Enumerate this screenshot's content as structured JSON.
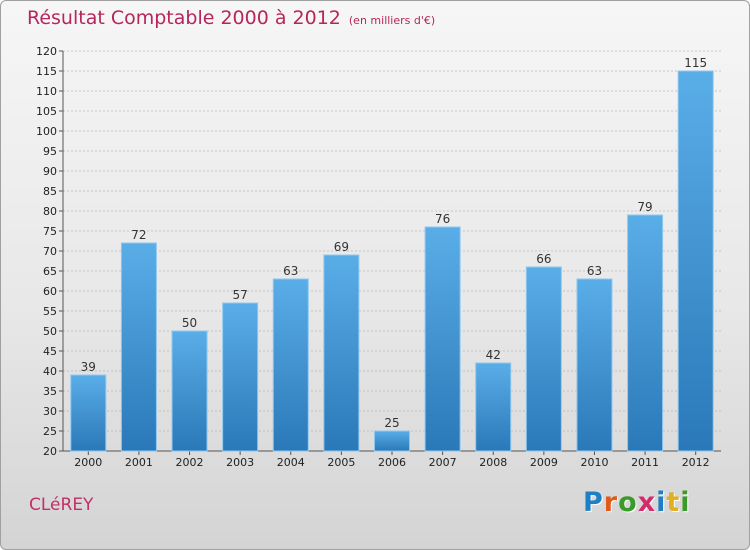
{
  "title": "Résultat Comptable 2000 à 2012",
  "subtitle": "(en milliers d'€)",
  "commune": "CLéREY",
  "logo": {
    "letters": [
      "P",
      "r",
      "o",
      "x",
      "i",
      "t",
      "i"
    ],
    "colors": [
      "#1f7fc4",
      "#e05a1a",
      "#3a9a2a",
      "#d42a6a",
      "#1f7fc4",
      "#e0b020",
      "#3a9a2a"
    ]
  },
  "colors": {
    "bar_top": "#5aaee8",
    "bar_bottom": "#2a78b8",
    "title": "#b5265c"
  },
  "chart_data": {
    "type": "bar",
    "title": "Résultat Comptable 2000 à 2012",
    "subtitle": "(en milliers d'€)",
    "xlabel": "",
    "ylabel": "",
    "categories": [
      "2000",
      "2001",
      "2002",
      "2003",
      "2004",
      "2005",
      "2006",
      "2007",
      "2008",
      "2009",
      "2010",
      "2011",
      "2012"
    ],
    "values": [
      39,
      72,
      50,
      57,
      63,
      69,
      25,
      76,
      42,
      66,
      63,
      79,
      115
    ],
    "ylim": [
      20,
      120
    ],
    "yticks": [
      20,
      25,
      30,
      35,
      40,
      45,
      50,
      55,
      60,
      65,
      70,
      75,
      80,
      85,
      90,
      95,
      100,
      105,
      110,
      115,
      120
    ],
    "grid": true
  }
}
